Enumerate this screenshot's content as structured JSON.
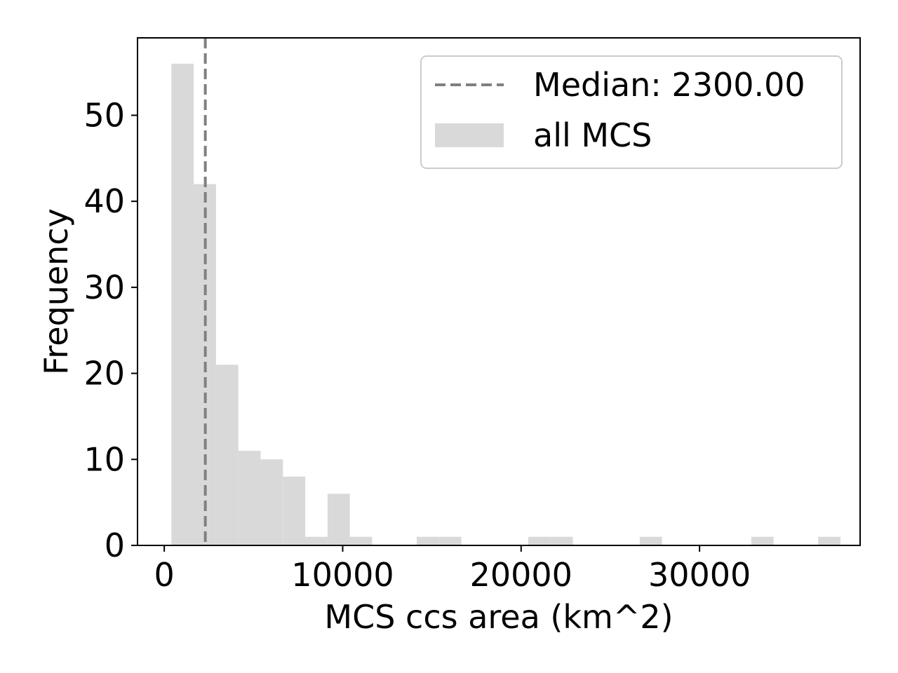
{
  "chart_data": {
    "type": "bar",
    "title": "",
    "xlabel": "MCS ccs area (km^2)",
    "ylabel": "Frequency",
    "xlim": [
      -1500,
      39000
    ],
    "ylim": [
      0,
      59
    ],
    "xticks": [
      0,
      10000,
      20000,
      30000
    ],
    "xtick_labels": [
      "0",
      "10000",
      "20000",
      "30000"
    ],
    "yticks": [
      0,
      10,
      20,
      30,
      40,
      50
    ],
    "ytick_labels": [
      "0",
      "10",
      "20",
      "30",
      "40",
      "50"
    ],
    "grid": false,
    "legend_position": "top-right",
    "bar_color": "#d9d9d9",
    "median_line": {
      "value": 2300,
      "label": "Median: 2300.00",
      "color": "#808080",
      "style": "dashed"
    },
    "series": [
      {
        "name": "all MCS",
        "bin_edges": [
          400,
          1650,
          2900,
          4150,
          5400,
          6650,
          7900,
          9150,
          10400,
          11650,
          12900,
          14150,
          15400,
          16650,
          17900,
          19150,
          20400,
          21650,
          22900,
          24150,
          25400,
          26650,
          27900,
          29150,
          30400,
          31650,
          32900,
          34150,
          35400,
          36650,
          37900
        ],
        "values": [
          56,
          42,
          21,
          11,
          10,
          8,
          1,
          6,
          1,
          0,
          0,
          1,
          1,
          0,
          0,
          0,
          1,
          1,
          0,
          0,
          0,
          1,
          0,
          0,
          0,
          0,
          1,
          0,
          0,
          1
        ]
      }
    ]
  }
}
